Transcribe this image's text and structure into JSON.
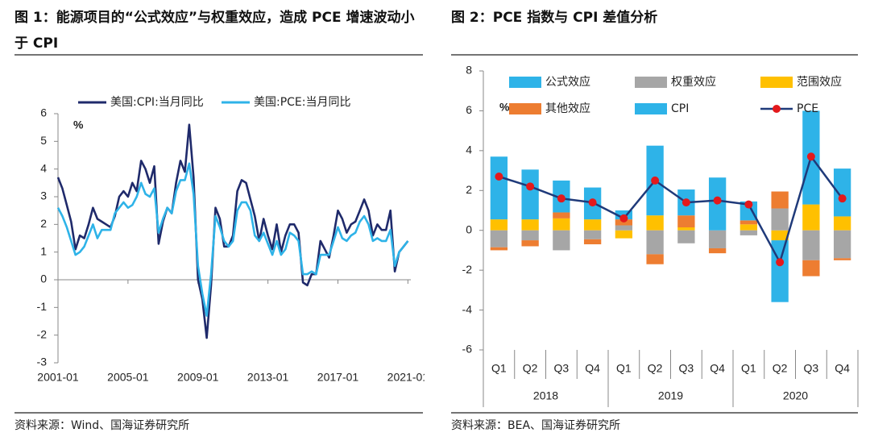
{
  "chart_data": [
    {
      "type": "line",
      "title": "图 1：能源项目的“公式效应”与权重效应，造成 PCE 增速波动小于 CPI",
      "unit": "%",
      "source": "资料来源：Wind、国海证券研究所",
      "x": [
        "2001-01",
        "2001-04",
        "2001-07",
        "2001-10",
        "2002-01",
        "2002-04",
        "2002-07",
        "2002-10",
        "2003-01",
        "2003-04",
        "2003-07",
        "2003-10",
        "2004-01",
        "2004-04",
        "2004-07",
        "2004-10",
        "2005-01",
        "2005-04",
        "2005-07",
        "2005-10",
        "2006-01",
        "2006-04",
        "2006-07",
        "2006-10",
        "2007-01",
        "2007-04",
        "2007-07",
        "2007-10",
        "2008-01",
        "2008-04",
        "2008-07",
        "2008-10",
        "2009-01",
        "2009-04",
        "2009-07",
        "2009-10",
        "2010-01",
        "2010-04",
        "2010-07",
        "2010-10",
        "2011-01",
        "2011-04",
        "2011-07",
        "2011-10",
        "2012-01",
        "2012-04",
        "2012-07",
        "2012-10",
        "2013-01",
        "2013-04",
        "2013-07",
        "2013-10",
        "2014-01",
        "2014-04",
        "2014-07",
        "2014-10",
        "2015-01",
        "2015-04",
        "2015-07",
        "2015-10",
        "2016-01",
        "2016-04",
        "2016-07",
        "2016-10",
        "2017-01",
        "2017-04",
        "2017-07",
        "2017-10",
        "2018-01",
        "2018-04",
        "2018-07",
        "2018-10",
        "2019-01",
        "2019-04",
        "2019-07",
        "2019-10",
        "2020-01",
        "2020-04",
        "2020-07",
        "2020-10",
        "2021-01"
      ],
      "xlim": [
        "2001-01",
        "2021-03"
      ],
      "xticks": [
        "2001-01",
        "2005-01",
        "2009-01",
        "2013-01",
        "2017-01",
        "2021-01"
      ],
      "ylim": [
        -3,
        6
      ],
      "yticks": [
        -3,
        -2,
        -1,
        0,
        1,
        2,
        3,
        4,
        5,
        6
      ],
      "series": [
        {
          "name": "美国:CPI:当月同比",
          "color": "#1f2a6b",
          "values": [
            3.7,
            3.3,
            2.7,
            2.1,
            1.1,
            1.6,
            1.5,
            2.0,
            2.6,
            2.2,
            2.1,
            2.0,
            1.9,
            2.3,
            3.0,
            3.2,
            3.0,
            3.5,
            3.2,
            4.3,
            4.0,
            3.5,
            4.1,
            1.3,
            2.1,
            2.6,
            2.4,
            3.5,
            4.3,
            3.9,
            5.6,
            3.7,
            0.0,
            -0.7,
            -2.1,
            -0.2,
            2.6,
            2.2,
            1.2,
            1.2,
            1.6,
            3.2,
            3.6,
            3.5,
            2.9,
            2.3,
            1.4,
            2.2,
            1.6,
            1.1,
            2.0,
            1.0,
            1.6,
            2.0,
            2.0,
            1.7,
            -0.1,
            -0.2,
            0.2,
            0.2,
            1.4,
            1.1,
            0.8,
            1.6,
            2.5,
            2.2,
            1.7,
            2.0,
            2.1,
            2.5,
            2.9,
            2.5,
            1.6,
            2.0,
            1.8,
            1.8,
            2.5,
            0.3,
            1.0,
            1.2,
            1.4
          ]
        },
        {
          "name": "美国:PCE:当月同比",
          "color": "#2eb3e8",
          "values": [
            2.6,
            2.3,
            1.9,
            1.4,
            0.9,
            1.0,
            1.2,
            1.6,
            2.0,
            1.5,
            1.8,
            1.8,
            1.8,
            2.4,
            2.6,
            2.8,
            2.6,
            2.7,
            3.0,
            3.5,
            3.1,
            3.0,
            3.3,
            1.7,
            2.2,
            2.6,
            2.4,
            3.2,
            3.6,
            3.6,
            4.2,
            3.1,
            0.5,
            -0.5,
            -1.3,
            0.2,
            2.3,
            1.9,
            1.4,
            1.2,
            1.4,
            2.5,
            2.8,
            2.8,
            2.5,
            1.6,
            1.4,
            1.7,
            1.3,
            0.9,
            1.4,
            0.9,
            1.1,
            1.7,
            1.6,
            1.4,
            0.2,
            0.2,
            0.3,
            0.2,
            0.9,
            0.9,
            0.9,
            1.4,
            1.9,
            1.5,
            1.4,
            1.6,
            1.7,
            2.1,
            2.3,
            2.0,
            1.4,
            1.5,
            1.4,
            1.4,
            1.8,
            0.5,
            1.0,
            1.2,
            1.4
          ]
        }
      ]
    },
    {
      "type": "bar",
      "title": "图 2：PCE 指数与 CPI 差值分析",
      "unit": "%",
      "source": "资料来源：BEA、国海证券研究所",
      "categories": [
        "Q1",
        "Q2",
        "Q3",
        "Q4",
        "Q1",
        "Q2",
        "Q3",
        "Q4",
        "Q1",
        "Q2",
        "Q3",
        "Q4"
      ],
      "groups": [
        "2018",
        "2019",
        "2020"
      ],
      "ylim": [
        -6,
        8
      ],
      "yticks": [
        -6,
        -4,
        -2,
        0,
        2,
        4,
        6,
        8
      ],
      "series": [
        {
          "name": "公式效应",
          "color": "#2eb3e8",
          "values": [
            3.15,
            2.5,
            1.6,
            1.6,
            0.45,
            3.5,
            1.3,
            2.65,
            0.95,
            -3.1,
            4.7,
            2.4
          ]
        },
        {
          "name": "权重效应",
          "color": "#a6a6a6",
          "values": [
            -0.85,
            -0.5,
            -1.0,
            -0.45,
            0.25,
            -1.2,
            -0.65,
            -0.9,
            -0.25,
            1.1,
            -1.5,
            -1.4
          ]
        },
        {
          "name": "范围效应",
          "color": "#ffc000",
          "values": [
            0.55,
            0.55,
            0.6,
            0.55,
            -0.4,
            0.75,
            0.15,
            null,
            0.3,
            -0.5,
            1.3,
            0.7
          ]
        },
        {
          "name": "其他效应",
          "color": "#ed7d31",
          "values": [
            -0.15,
            -0.3,
            0.3,
            -0.25,
            0.3,
            -0.5,
            0.6,
            -0.25,
            0.2,
            0.85,
            -0.8,
            -0.1
          ]
        },
        {
          "name": "CPI",
          "color": "#2eb3e8",
          "values": [
            null,
            null,
            null,
            null,
            null,
            null,
            null,
            null,
            null,
            null,
            null,
            null
          ]
        },
        {
          "name": "PCE",
          "type": "line",
          "color": "#1f3a7a",
          "marker_color": "#e3191c",
          "values": [
            2.7,
            2.2,
            1.6,
            1.4,
            0.6,
            2.5,
            1.4,
            1.5,
            1.3,
            -1.6,
            3.7,
            1.6
          ]
        }
      ]
    }
  ]
}
